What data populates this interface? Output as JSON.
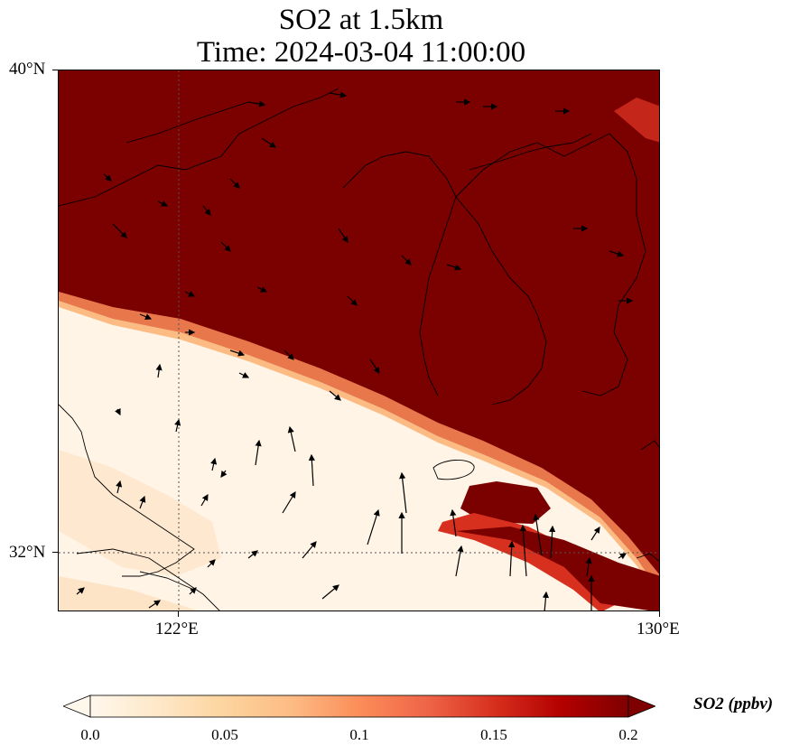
{
  "title": {
    "line1": "SO2 at 1.5km",
    "line2": "Time: 2024-03-04 11:00:00"
  },
  "map": {
    "lon_range": [
      120,
      130
    ],
    "lat_range": [
      31,
      40
    ],
    "gridlines": {
      "lon": [
        122
      ],
      "lat": [
        32
      ],
      "style": "dotted"
    },
    "coastline_color": "#000000",
    "arrows_color": "#000000"
  },
  "axes": {
    "lat_ticks": [
      {
        "label": "40°N",
        "value": 40
      },
      {
        "label": "32°N",
        "value": 32
      }
    ],
    "lon_ticks": [
      {
        "label": "122°E",
        "value": 122
      },
      {
        "label": "130°E",
        "value": 130
      }
    ]
  },
  "colorbar": {
    "label": "SO2 (ppbv)",
    "min": 0.0,
    "max": 0.2,
    "extend": "both",
    "ticks": [
      {
        "label": "0.0",
        "value": 0.0
      },
      {
        "label": "0.05",
        "value": 0.05
      },
      {
        "label": "0.1",
        "value": 0.1
      },
      {
        "label": "0.15",
        "value": 0.15
      },
      {
        "label": "0.2",
        "value": 0.2
      }
    ],
    "colors": [
      "#fff7ec",
      "#fee8c8",
      "#fdd49e",
      "#fdbb84",
      "#fc8d59",
      "#ef6548",
      "#d7301f",
      "#b30000",
      "#7f0000"
    ]
  }
}
